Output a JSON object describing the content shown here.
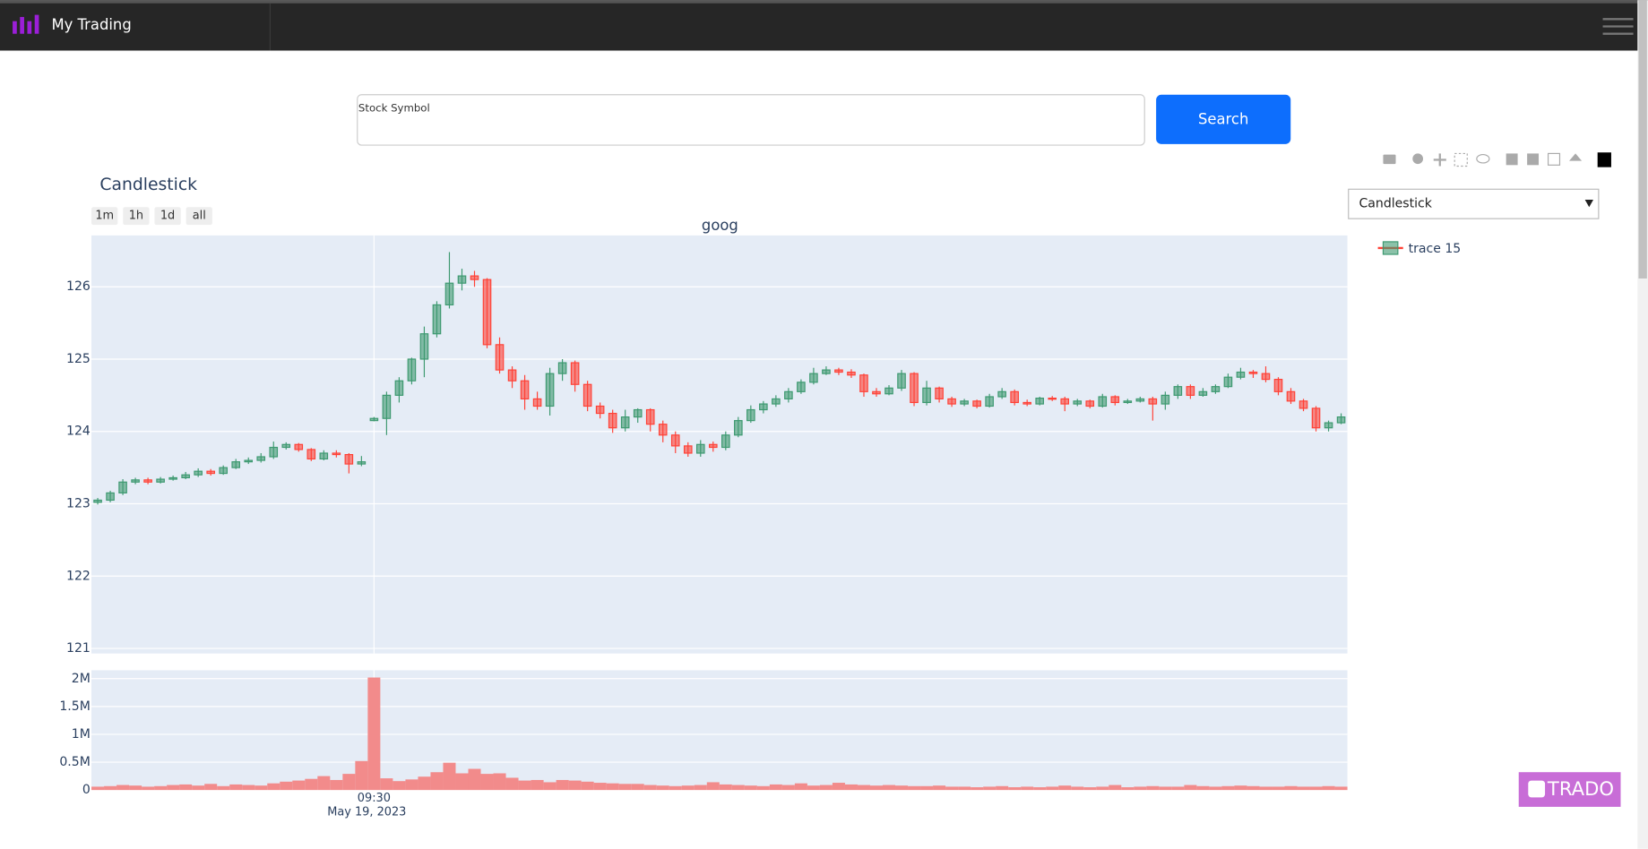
{
  "header": {
    "brand": "My Trading"
  },
  "search": {
    "label": "Stock Symbol",
    "button": "Search"
  },
  "dropdown": {
    "selected": "Candlestick"
  },
  "badge": "TRADO",
  "chart_data": {
    "type": "candlestick",
    "title": "Candlestick",
    "subtitle": "goog",
    "range_buttons": [
      "1m",
      "1h",
      "1d",
      "all"
    ],
    "name": "trace 15",
    "increasing_color": "#3d9970",
    "decreasing_color": "#ff4136",
    "xlim": [
      -0.5,
      99.5
    ],
    "xticks": [
      {
        "value": 22,
        "label": "09:30"
      }
    ],
    "x_date_label": "May 19, 2023",
    "ylim": [
      120.93,
      126.71
    ],
    "yticks": [
      121,
      122,
      123,
      124,
      125,
      126
    ],
    "grid": true,
    "open": [
      123.02,
      123.05,
      123.15,
      123.3,
      123.33,
      123.3,
      123.34,
      123.36,
      123.4,
      123.45,
      123.42,
      123.5,
      123.58,
      123.6,
      123.65,
      123.78,
      123.82,
      123.75,
      123.62,
      123.7,
      123.68,
      123.55,
      124.15,
      124.18,
      124.5,
      124.7,
      125.0,
      125.35,
      125.75,
      126.05,
      126.15,
      126.1,
      125.2,
      124.85,
      124.7,
      124.45,
      124.35,
      124.8,
      124.95,
      124.65,
      124.35,
      124.25,
      124.05,
      124.2,
      124.3,
      124.1,
      123.95,
      123.8,
      123.7,
      123.82,
      123.78,
      123.95,
      124.15,
      124.3,
      124.38,
      124.45,
      124.55,
      124.68,
      124.8,
      124.85,
      124.82,
      124.78,
      124.55,
      124.52,
      124.6,
      124.8,
      124.4,
      124.6,
      124.45,
      124.38,
      124.42,
      124.35,
      124.48,
      124.55,
      124.4,
      124.38,
      124.46,
      124.45,
      124.38,
      124.42,
      124.35,
      124.48,
      124.4,
      124.42,
      124.45,
      124.38,
      124.5,
      124.62,
      124.5,
      124.55,
      124.62,
      124.75,
      124.82,
      124.8,
      124.72,
      124.55,
      124.42,
      124.32,
      124.05,
      124.12
    ],
    "high": [
      123.08,
      123.18,
      123.34,
      123.36,
      123.36,
      123.37,
      123.39,
      123.44,
      123.49,
      123.48,
      123.53,
      123.62,
      123.64,
      123.7,
      123.86,
      123.85,
      123.84,
      123.77,
      123.74,
      123.74,
      123.7,
      123.66,
      124.2,
      124.55,
      124.75,
      125.02,
      125.45,
      125.8,
      126.48,
      126.25,
      126.22,
      126.12,
      125.3,
      124.9,
      124.78,
      124.55,
      124.88,
      125.0,
      124.98,
      124.7,
      124.4,
      124.3,
      124.3,
      124.32,
      124.32,
      124.15,
      124.0,
      123.85,
      123.88,
      123.86,
      124.0,
      124.2,
      124.36,
      124.42,
      124.5,
      124.6,
      124.72,
      124.88,
      124.9,
      124.88,
      124.86,
      124.8,
      124.6,
      124.64,
      124.85,
      124.82,
      124.7,
      124.62,
      124.48,
      124.45,
      124.44,
      124.52,
      124.6,
      124.58,
      124.44,
      124.48,
      124.49,
      124.48,
      124.45,
      124.44,
      124.52,
      124.5,
      124.45,
      124.48,
      124.48,
      124.55,
      124.65,
      124.65,
      124.6,
      124.65,
      124.8,
      124.88,
      124.85,
      124.9,
      124.75,
      124.6,
      124.45,
      124.35,
      124.15,
      124.25
    ],
    "low": [
      122.99,
      123.02,
      123.12,
      123.27,
      123.27,
      123.28,
      123.32,
      123.34,
      123.37,
      123.39,
      123.4,
      123.48,
      123.55,
      123.57,
      123.62,
      123.75,
      123.72,
      123.59,
      123.6,
      123.64,
      123.42,
      123.52,
      124.14,
      123.95,
      124.4,
      124.65,
      124.75,
      125.3,
      125.7,
      125.95,
      126.0,
      125.15,
      124.8,
      124.6,
      124.3,
      124.3,
      124.22,
      124.7,
      124.55,
      124.28,
      124.18,
      123.98,
      124.0,
      124.12,
      124.0,
      123.85,
      123.7,
      123.65,
      123.65,
      123.72,
      123.74,
      123.92,
      124.12,
      124.25,
      124.34,
      124.4,
      124.52,
      124.65,
      124.78,
      124.78,
      124.74,
      124.48,
      124.48,
      124.5,
      124.56,
      124.35,
      124.36,
      124.4,
      124.34,
      124.35,
      124.32,
      124.33,
      124.45,
      124.36,
      124.35,
      124.36,
      124.42,
      124.28,
      124.35,
      124.32,
      124.33,
      124.36,
      124.38,
      124.4,
      124.15,
      124.3,
      124.45,
      124.45,
      124.48,
      124.52,
      124.6,
      124.72,
      124.74,
      124.68,
      124.5,
      124.38,
      124.28,
      124.0,
      124.0,
      124.1
    ],
    "close": [
      123.05,
      123.15,
      123.3,
      123.33,
      123.3,
      123.34,
      123.36,
      123.4,
      123.45,
      123.42,
      123.5,
      123.58,
      123.6,
      123.65,
      123.78,
      123.82,
      123.75,
      123.62,
      123.7,
      123.68,
      123.55,
      123.58,
      124.18,
      124.5,
      124.7,
      125.0,
      125.35,
      125.75,
      126.05,
      126.15,
      126.1,
      125.2,
      124.85,
      124.7,
      124.45,
      124.35,
      124.8,
      124.95,
      124.65,
      124.35,
      124.25,
      124.05,
      124.2,
      124.3,
      124.1,
      123.95,
      123.8,
      123.7,
      123.82,
      123.78,
      123.95,
      124.15,
      124.3,
      124.38,
      124.45,
      124.55,
      124.68,
      124.8,
      124.85,
      124.82,
      124.78,
      124.55,
      124.52,
      124.6,
      124.8,
      124.4,
      124.6,
      124.45,
      124.38,
      124.42,
      124.35,
      124.48,
      124.55,
      124.4,
      124.38,
      124.46,
      124.45,
      124.38,
      124.42,
      124.35,
      124.48,
      124.4,
      124.42,
      124.45,
      124.38,
      124.5,
      124.62,
      124.5,
      124.55,
      124.62,
      124.75,
      124.82,
      124.8,
      124.72,
      124.55,
      124.42,
      124.32,
      124.05,
      124.12,
      124.2
    ],
    "volume": {
      "type": "bar",
      "color": "#f28b8b",
      "ylim": [
        0,
        2150000
      ],
      "yticks": [
        0,
        {
          "value": 500000,
          "label": "0.5M"
        },
        {
          "value": 1000000,
          "label": "1M"
        },
        {
          "value": 1500000,
          "label": "1.5M"
        },
        {
          "value": 2000000,
          "label": "2M"
        }
      ],
      "values": [
        60000,
        70000,
        90000,
        80000,
        60000,
        70000,
        90000,
        100000,
        80000,
        110000,
        70000,
        100000,
        90000,
        80000,
        120000,
        150000,
        170000,
        200000,
        250000,
        180000,
        290000,
        520000,
        2020000,
        210000,
        160000,
        190000,
        240000,
        320000,
        490000,
        300000,
        380000,
        290000,
        300000,
        220000,
        170000,
        180000,
        140000,
        180000,
        170000,
        150000,
        130000,
        120000,
        110000,
        110000,
        90000,
        80000,
        70000,
        80000,
        90000,
        140000,
        100000,
        90000,
        80000,
        70000,
        100000,
        90000,
        120000,
        80000,
        90000,
        130000,
        100000,
        90000,
        80000,
        90000,
        80000,
        70000,
        70000,
        80000,
        60000,
        60000,
        50000,
        60000,
        70000,
        50000,
        60000,
        50000,
        60000,
        80000,
        60000,
        50000,
        60000,
        90000,
        50000,
        60000,
        70000,
        60000,
        60000,
        90000,
        70000,
        60000,
        70000,
        80000,
        70000,
        60000,
        60000,
        70000,
        60000,
        60000,
        70000,
        60000
      ]
    }
  }
}
